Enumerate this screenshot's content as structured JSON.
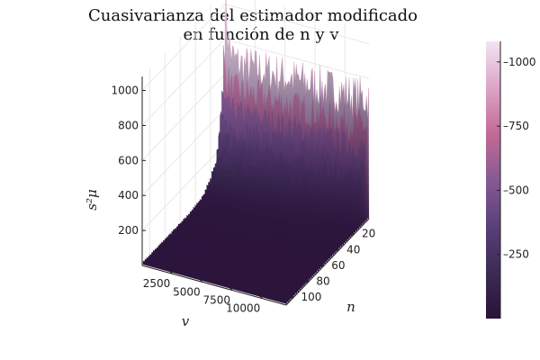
{
  "chart_data": {
    "type": "surface",
    "title_line1": "Cuasivarianza del estimador modificado",
    "title_line2": "en función de n y v",
    "xlabel": "v",
    "ylabel": "n",
    "zlabel": "s²μ",
    "v_ticks": [
      "2500",
      "5000",
      "7500",
      "10000"
    ],
    "v_tick_values": [
      2500,
      5000,
      7500,
      10000
    ],
    "n_ticks": [
      "20",
      "40",
      "60",
      "80",
      "100"
    ],
    "n_tick_values": [
      20,
      40,
      60,
      80,
      100
    ],
    "z_ticks": [
      "200",
      "400",
      "600",
      "800",
      "1000"
    ],
    "z_tick_values": [
      200,
      400,
      600,
      800,
      1000
    ],
    "v_range": [
      1,
      12000
    ],
    "n_range": [
      1,
      110
    ],
    "z_range": [
      0,
      1080
    ],
    "colorbar_ticks": [
      "250",
      "500",
      "750",
      "1000"
    ],
    "colorbar_tick_values": [
      250,
      500,
      750,
      1000
    ],
    "colorbar_range": [
      0,
      1080
    ],
    "colormap": [
      "#2a1238",
      "#3c2b55",
      "#5a3f7a",
      "#855a94",
      "#c26a96",
      "#dca4c8",
      "#f2e4f2"
    ],
    "peak": {
      "v": 1,
      "n": 1,
      "z": 1080
    },
    "ridge_level": 660,
    "floor_level": 20
  }
}
